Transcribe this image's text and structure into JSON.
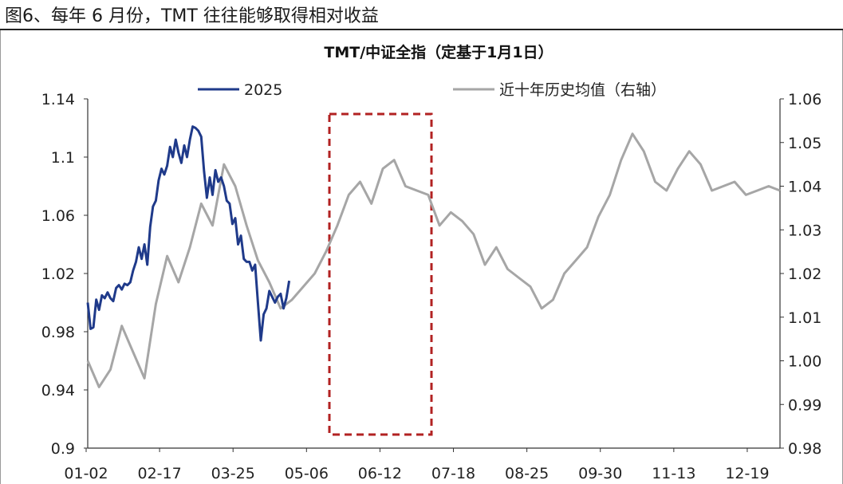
{
  "figure": {
    "caption": "图6、每年 6 月份，TMT 往往能够取得相对收益"
  },
  "chart_data": {
    "type": "line",
    "title": "TMT/中证全指（定基于1月1日）",
    "xlabel": "",
    "ylabel": "",
    "x_tick_labels": [
      "01-02",
      "02-17",
      "03-25",
      "05-06",
      "06-12",
      "07-18",
      "08-25",
      "09-30",
      "11-13",
      "12-19"
    ],
    "left_axis": {
      "ylim": [
        0.9,
        1.14
      ],
      "ticks": [
        "0.9",
        "0.94",
        "0.98",
        "1.02",
        "1.06",
        "1.1",
        "1.14"
      ]
    },
    "right_axis": {
      "ylim": [
        0.98,
        1.06
      ],
      "ticks": [
        "0.98",
        "0.99",
        "1.00",
        "1.01",
        "1.02",
        "1.03",
        "1.04",
        "1.05",
        "1.06"
      ]
    },
    "legend_position": "top",
    "grid": false,
    "highlight_box": {
      "x_range": [
        "05-13",
        "07-10"
      ],
      "color": "#b22222",
      "style": "dashed"
    },
    "series": [
      {
        "name": "2025",
        "axis": "left",
        "color": "#1f3a8a",
        "x_index": [
          0,
          1,
          2,
          3,
          4,
          5,
          6,
          7,
          8,
          9,
          10,
          11,
          12,
          13,
          14,
          15,
          16,
          17,
          18,
          19,
          20,
          21,
          22,
          23,
          24,
          25,
          26,
          27,
          28,
          29,
          30,
          31,
          32,
          33,
          34,
          35,
          36,
          37,
          38,
          39,
          40,
          41,
          42,
          43,
          44,
          45,
          46,
          47,
          48,
          49,
          50,
          51,
          52,
          53,
          54,
          55,
          56,
          57,
          58,
          59,
          60,
          61,
          62,
          63,
          64,
          65,
          66,
          67,
          68,
          69,
          70,
          71
        ],
        "values": [
          1.0,
          0.982,
          0.983,
          1.002,
          0.995,
          1.005,
          1.003,
          1.007,
          1.003,
          1.001,
          1.01,
          1.012,
          1.009,
          1.013,
          1.012,
          1.014,
          1.022,
          1.028,
          1.038,
          1.03,
          1.04,
          1.026,
          1.052,
          1.066,
          1.07,
          1.084,
          1.092,
          1.088,
          1.094,
          1.107,
          1.1,
          1.112,
          1.103,
          1.096,
          1.108,
          1.1,
          1.112,
          1.121,
          1.12,
          1.118,
          1.114,
          1.09,
          1.072,
          1.086,
          1.074,
          1.091,
          1.083,
          1.086,
          1.08,
          1.07,
          1.068,
          1.054,
          1.058,
          1.04,
          1.046,
          1.03,
          1.028,
          1.028,
          1.022,
          1.026,
          1.0,
          0.974,
          0.992,
          0.996,
          1.008,
          1.004,
          1.0,
          1.004,
          1.006,
          0.996,
          1.003,
          1.015
        ]
      },
      {
        "name": "近十年历史均值（右轴）",
        "axis": "right",
        "color": "#a6a6a6",
        "x_index": [
          0,
          4,
          8,
          12,
          16,
          20,
          24,
          28,
          32,
          36,
          40,
          44,
          48,
          52,
          56,
          60,
          64,
          68,
          72,
          76,
          80,
          84,
          88,
          92,
          96,
          100,
          104,
          108,
          112,
          116,
          120,
          124,
          128,
          132,
          136,
          140,
          144,
          148,
          152,
          156,
          160,
          164,
          168,
          172,
          176,
          180,
          184,
          188,
          192,
          196,
          200,
          204,
          208,
          212,
          216,
          220,
          224,
          228,
          232,
          236,
          240,
          244
        ],
        "values": [
          1.0,
          0.994,
          0.998,
          1.008,
          1.002,
          0.996,
          1.013,
          1.024,
          1.018,
          1.026,
          1.036,
          1.031,
          1.045,
          1.04,
          1.031,
          1.023,
          1.018,
          1.012,
          1.014,
          1.017,
          1.02,
          1.025,
          1.031,
          1.038,
          1.041,
          1.036,
          1.044,
          1.046,
          1.04,
          1.039,
          1.038,
          1.031,
          1.034,
          1.032,
          1.029,
          1.022,
          1.026,
          1.021,
          1.019,
          1.017,
          1.012,
          1.014,
          1.02,
          1.023,
          1.026,
          1.033,
          1.038,
          1.046,
          1.052,
          1.048,
          1.041,
          1.039,
          1.044,
          1.048,
          1.045,
          1.039,
          1.04,
          1.041,
          1.038,
          1.039,
          1.04,
          1.039
        ]
      }
    ]
  }
}
